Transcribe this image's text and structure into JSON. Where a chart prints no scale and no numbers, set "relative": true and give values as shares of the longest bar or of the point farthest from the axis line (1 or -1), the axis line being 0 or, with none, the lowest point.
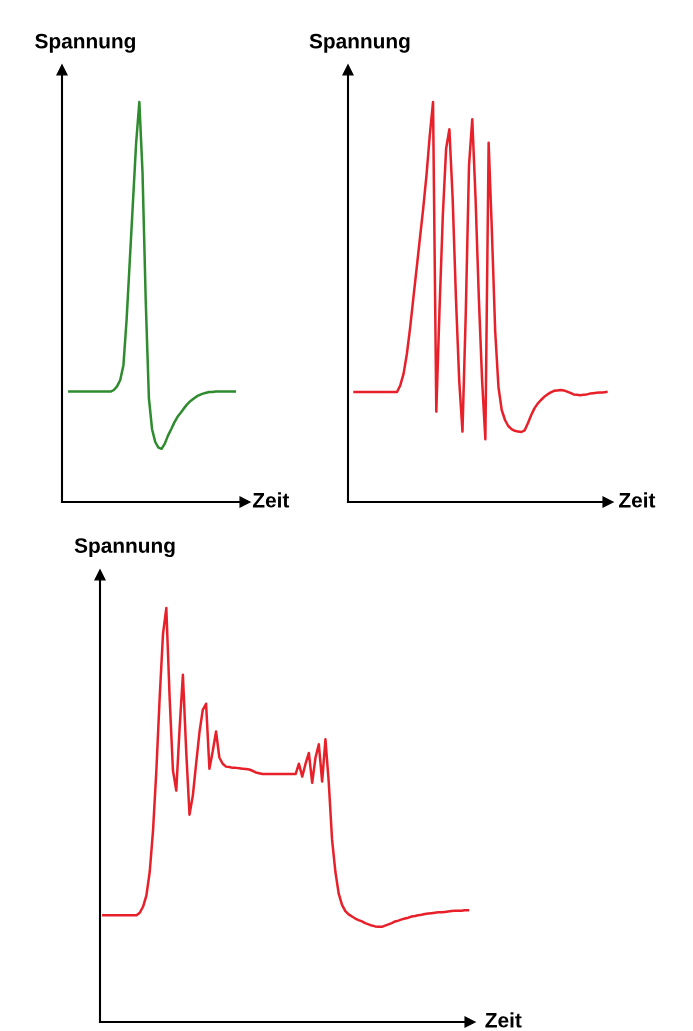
{
  "chart_data": [
    {
      "type": "line",
      "relative": true,
      "tick_labels": false,
      "xlabel": "Zeit",
      "ylabel": "Spannung",
      "categories": [
        null,
        null,
        null,
        null,
        null,
        null,
        null,
        null,
        null,
        null,
        null,
        null,
        null,
        null,
        null,
        null,
        null,
        null,
        null,
        null,
        null,
        null,
        null,
        null,
        null,
        null,
        null,
        null,
        null,
        null,
        null,
        null,
        null,
        null,
        null,
        null,
        null,
        null,
        null,
        null,
        null,
        null,
        null,
        null,
        null,
        null,
        null,
        null,
        null,
        null,
        null,
        null,
        null
      ],
      "series": [
        {
          "color": "#2e8b2e",
          "values": [
            0.276,
            0.276,
            0.276,
            0.276,
            0.276,
            0.276,
            0.276,
            0.276,
            0.276,
            0.276,
            0.276,
            0.276,
            0.276,
            0.276,
            0.28,
            0.289,
            0.305,
            0.342,
            0.456,
            0.603,
            0.751,
            0.898,
            1.0,
            0.824,
            0.505,
            0.26,
            0.182,
            0.15,
            0.136,
            0.133,
            0.146,
            0.166,
            0.182,
            0.199,
            0.213,
            0.223,
            0.234,
            0.244,
            0.252,
            0.258,
            0.264,
            0.268,
            0.271,
            0.273,
            0.275,
            0.275,
            0.276,
            0.276,
            0.276,
            0.276,
            0.276,
            0.276,
            0.276
          ]
        }
      ]
    },
    {
      "type": "line",
      "relative": true,
      "tick_labels": false,
      "xlabel": "Zeit",
      "ylabel": "Spannung",
      "categories": [
        null,
        null,
        null,
        null,
        null,
        null,
        null,
        null,
        null,
        null,
        null,
        null,
        null,
        null,
        null,
        null,
        null,
        null,
        null,
        null,
        null,
        null,
        null,
        null,
        null,
        null,
        null,
        null,
        null,
        null,
        null,
        null,
        null,
        null,
        null,
        null,
        null,
        null,
        null,
        null,
        null,
        null,
        null,
        null,
        null,
        null,
        null,
        null,
        null,
        null,
        null,
        null,
        null,
        null,
        null,
        null,
        null,
        null,
        null,
        null,
        null,
        null,
        null,
        null,
        null,
        null,
        null,
        null,
        null,
        null,
        null,
        null,
        null,
        null,
        null,
        null,
        null,
        null
      ],
      "series": [
        {
          "color": "#e8202a",
          "values": [
            0.275,
            0.275,
            0.275,
            0.275,
            0.275,
            0.275,
            0.275,
            0.275,
            0.275,
            0.275,
            0.275,
            0.275,
            0.275,
            0.275,
            0.292,
            0.321,
            0.37,
            0.436,
            0.511,
            0.585,
            0.66,
            0.734,
            0.817,
            0.916,
            1.0,
            0.226,
            0.486,
            0.717,
            0.883,
            0.932,
            0.759,
            0.511,
            0.304,
            0.176,
            0.469,
            0.841,
            0.957,
            0.759,
            0.511,
            0.304,
            0.157,
            0.898,
            0.676,
            0.428,
            0.288,
            0.23,
            0.205,
            0.19,
            0.182,
            0.178,
            0.176,
            0.175,
            0.179,
            0.197,
            0.217,
            0.234,
            0.246,
            0.255,
            0.263,
            0.269,
            0.274,
            0.278,
            0.279,
            0.28,
            0.279,
            0.276,
            0.273,
            0.269,
            0.268,
            0.267,
            0.268,
            0.269,
            0.271,
            0.272,
            0.273,
            0.274,
            0.274,
            0.275
          ]
        }
      ]
    },
    {
      "type": "line",
      "relative": true,
      "tick_labels": false,
      "xlabel": "Zeit",
      "ylabel": "Spannung",
      "categories": [
        null,
        null,
        null,
        null,
        null,
        null,
        null,
        null,
        null,
        null,
        null,
        null,
        null,
        null,
        null,
        null,
        null,
        null,
        null,
        null,
        null,
        null,
        null,
        null,
        null,
        null,
        null,
        null,
        null,
        null,
        null,
        null,
        null,
        null,
        null,
        null,
        null,
        null,
        null,
        null,
        null,
        null,
        null,
        null,
        null,
        null,
        null,
        null,
        null,
        null,
        null,
        null,
        null,
        null,
        null,
        null,
        null,
        null,
        null,
        null,
        null,
        null,
        null,
        null,
        null,
        null,
        null,
        null,
        null,
        null,
        null,
        null,
        null,
        null,
        null,
        null,
        null,
        null,
        null,
        null,
        null,
        null,
        null,
        null,
        null,
        null,
        null,
        null,
        null,
        null,
        null,
        null,
        null,
        null,
        null,
        null,
        null,
        null,
        null,
        null,
        null,
        null,
        null,
        null,
        null,
        null,
        null,
        null,
        null,
        null,
        null
      ],
      "series": [
        {
          "color": "#e8202a",
          "values": [
            0.258,
            0.258,
            0.258,
            0.258,
            0.258,
            0.258,
            0.258,
            0.258,
            0.258,
            0.258,
            0.258,
            0.264,
            0.279,
            0.306,
            0.363,
            0.463,
            0.608,
            0.784,
            0.937,
            1.0,
            0.784,
            0.608,
            0.559,
            0.708,
            0.839,
            0.654,
            0.501,
            0.547,
            0.624,
            0.7,
            0.754,
            0.769,
            0.612,
            0.654,
            0.702,
            0.639,
            0.624,
            0.617,
            0.616,
            0.614,
            0.614,
            0.613,
            0.612,
            0.611,
            0.61,
            0.607,
            0.603,
            0.601,
            0.599,
            0.599,
            0.599,
            0.599,
            0.599,
            0.599,
            0.599,
            0.599,
            0.599,
            0.599,
            0.599,
            0.624,
            0.593,
            0.624,
            0.65,
            0.578,
            0.639,
            0.671,
            0.581,
            0.683,
            0.578,
            0.44,
            0.363,
            0.31,
            0.283,
            0.268,
            0.26,
            0.255,
            0.25,
            0.246,
            0.243,
            0.239,
            0.236,
            0.233,
            0.231,
            0.23,
            0.23,
            0.233,
            0.236,
            0.239,
            0.243,
            0.245,
            0.248,
            0.25,
            0.252,
            0.255,
            0.256,
            0.258,
            0.259,
            0.261,
            0.262,
            0.263,
            0.264,
            0.265,
            0.265,
            0.266,
            0.267,
            0.268,
            0.269,
            0.269,
            0.269,
            0.27,
            0.27
          ]
        }
      ]
    }
  ]
}
